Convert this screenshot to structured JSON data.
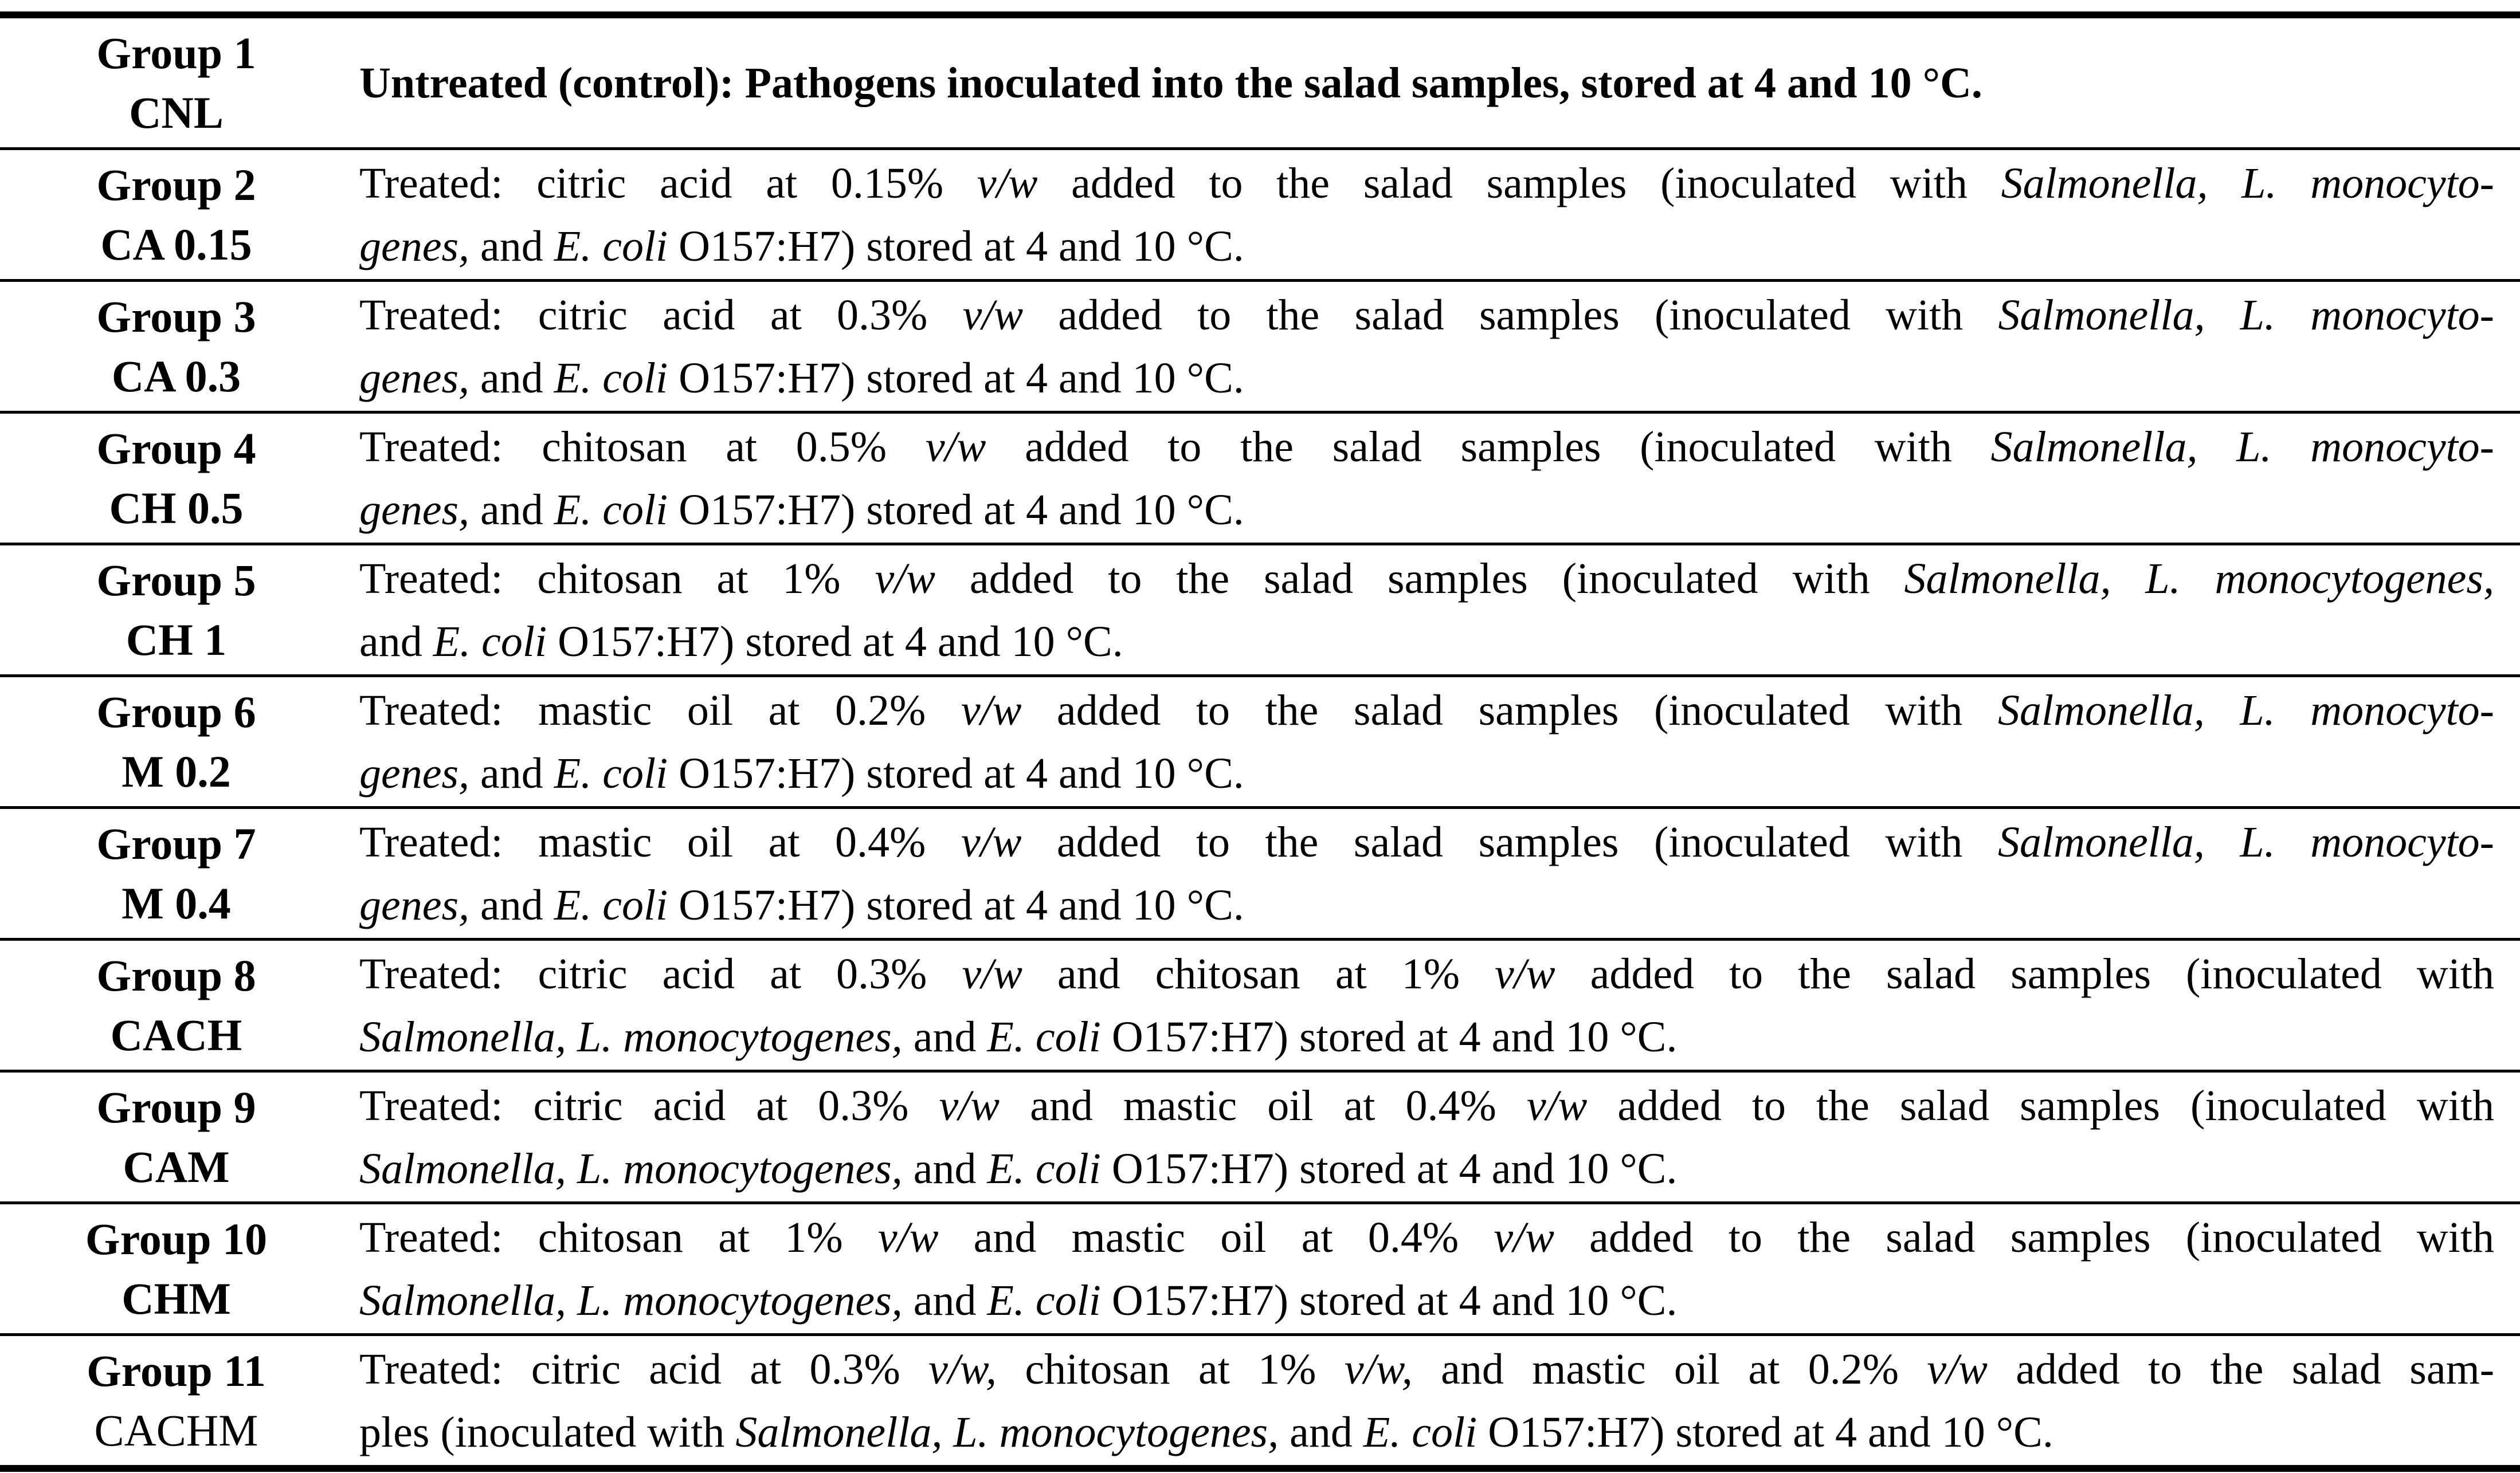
{
  "colors": {
    "text": "#000000",
    "background": "#ffffff",
    "rule": "#000000"
  },
  "table": {
    "rows": [
      {
        "group": "Group 1",
        "code": "CNL",
        "code_bold": true,
        "desc_bold": true,
        "lines": [
          [
            {
              "t": "Untreated (control): Pathogens inoculated into the salad samples, stored at 4 and 10 °C.",
              "i": false
            }
          ]
        ]
      },
      {
        "group": "Group 2",
        "code": "CA 0.15",
        "code_bold": true,
        "desc_bold": false,
        "lines": [
          [
            {
              "t": "Treated: citric acid at 0.15% ",
              "i": false
            },
            {
              "t": "v/w",
              "i": true
            },
            {
              "t": " added to the salad samples (inoculated with ",
              "i": false
            },
            {
              "t": "Salmonella, L. monocyto-",
              "i": true
            }
          ],
          [
            {
              "t": "genes,",
              "i": true
            },
            {
              "t": " and ",
              "i": false
            },
            {
              "t": "E. coli",
              "i": true
            },
            {
              "t": " O157:H7) stored at 4 and 10 °C.",
              "i": false
            }
          ]
        ]
      },
      {
        "group": "Group 3",
        "code": "CA 0.3",
        "code_bold": true,
        "desc_bold": false,
        "lines": [
          [
            {
              "t": "Treated: citric acid at 0.3% ",
              "i": false
            },
            {
              "t": "v/w",
              "i": true
            },
            {
              "t": " added to the salad samples (inoculated with ",
              "i": false
            },
            {
              "t": "Salmonella, L. monocyto-",
              "i": true
            }
          ],
          [
            {
              "t": "genes,",
              "i": true
            },
            {
              "t": " and ",
              "i": false
            },
            {
              "t": "E. coli",
              "i": true
            },
            {
              "t": " O157:H7) stored at 4 and 10 °C.",
              "i": false
            }
          ]
        ]
      },
      {
        "group": "Group 4",
        "code": "CH 0.5",
        "code_bold": true,
        "desc_bold": false,
        "lines": [
          [
            {
              "t": "Treated: chitosan at 0.5% ",
              "i": false
            },
            {
              "t": "v/w",
              "i": true
            },
            {
              "t": " added to the salad samples (inoculated with ",
              "i": false
            },
            {
              "t": "Salmonella, L. monocyto-",
              "i": true
            }
          ],
          [
            {
              "t": "genes,",
              "i": true
            },
            {
              "t": " and ",
              "i": false
            },
            {
              "t": "E. coli",
              "i": true
            },
            {
              "t": " O157:H7) stored at 4 and 10 °C.",
              "i": false
            }
          ]
        ]
      },
      {
        "group": "Group 5",
        "code": "CH 1",
        "code_bold": true,
        "desc_bold": false,
        "lines": [
          [
            {
              "t": "Treated: chitosan at 1% ",
              "i": false
            },
            {
              "t": "v/w",
              "i": true
            },
            {
              "t": " added to the salad samples (inoculated with ",
              "i": false
            },
            {
              "t": "Salmonella, L. monocytogenes,",
              "i": true
            }
          ],
          [
            {
              "t": "and ",
              "i": false
            },
            {
              "t": "E. coli",
              "i": true
            },
            {
              "t": " O157:H7) stored at 4 and 10 °C.",
              "i": false
            }
          ]
        ]
      },
      {
        "group": "Group 6",
        "code": "M 0.2",
        "code_bold": true,
        "desc_bold": false,
        "lines": [
          [
            {
              "t": "Treated: mastic oil at 0.2% ",
              "i": false
            },
            {
              "t": "v/w",
              "i": true
            },
            {
              "t": " added to the salad samples (inoculated with ",
              "i": false
            },
            {
              "t": "Salmonella, L. monocyto-",
              "i": true
            }
          ],
          [
            {
              "t": "genes,",
              "i": true
            },
            {
              "t": " and ",
              "i": false
            },
            {
              "t": "E. coli",
              "i": true
            },
            {
              "t": " O157:H7) stored at 4 and 10 °C.",
              "i": false
            }
          ]
        ]
      },
      {
        "group": "Group 7",
        "code": "M 0.4",
        "code_bold": true,
        "desc_bold": false,
        "lines": [
          [
            {
              "t": "Treated: mastic oil at 0.4% ",
              "i": false
            },
            {
              "t": "v/w",
              "i": true
            },
            {
              "t": " added to the salad samples (inoculated with ",
              "i": false
            },
            {
              "t": "Salmonella, L. monocyto-",
              "i": true
            }
          ],
          [
            {
              "t": "genes,",
              "i": true
            },
            {
              "t": " and ",
              "i": false
            },
            {
              "t": "E. coli",
              "i": true
            },
            {
              "t": " O157:H7) stored at 4 and 10 °C.",
              "i": false
            }
          ]
        ]
      },
      {
        "group": "Group 8",
        "code": "CACH",
        "code_bold": true,
        "desc_bold": false,
        "lines": [
          [
            {
              "t": "Treated: citric acid at 0.3% ",
              "i": false
            },
            {
              "t": "v/w",
              "i": true
            },
            {
              "t": " and chitosan at 1% ",
              "i": false
            },
            {
              "t": "v/w",
              "i": true
            },
            {
              "t": " added to the salad samples (inoculated with",
              "i": false
            }
          ],
          [
            {
              "t": "Salmonella, L. monocytogenes,",
              "i": true
            },
            {
              "t": " and ",
              "i": false
            },
            {
              "t": "E. coli",
              "i": true
            },
            {
              "t": " O157:H7) stored at 4 and 10 °C.",
              "i": false
            }
          ]
        ]
      },
      {
        "group": "Group 9",
        "code": "CAM",
        "code_bold": true,
        "desc_bold": false,
        "lines": [
          [
            {
              "t": "Treated: citric acid at 0.3% ",
              "i": false
            },
            {
              "t": "v/w",
              "i": true
            },
            {
              "t": " and mastic oil at 0.4% ",
              "i": false
            },
            {
              "t": "v/w",
              "i": true
            },
            {
              "t": " added to the salad samples (inoculated with",
              "i": false
            }
          ],
          [
            {
              "t": "Salmonella, L. monocytogenes,",
              "i": true
            },
            {
              "t": " and ",
              "i": false
            },
            {
              "t": "E. coli",
              "i": true
            },
            {
              "t": " O157:H7) stored at 4 and 10 °C.",
              "i": false
            }
          ]
        ]
      },
      {
        "group": "Group 10",
        "code": "CHM",
        "code_bold": true,
        "desc_bold": false,
        "lines": [
          [
            {
              "t": "Treated: chitosan at 1% ",
              "i": false
            },
            {
              "t": "v/w",
              "i": true
            },
            {
              "t": " and mastic oil at 0.4% ",
              "i": false
            },
            {
              "t": "v/w",
              "i": true
            },
            {
              "t": " added to the salad samples (inoculated with",
              "i": false
            }
          ],
          [
            {
              "t": "Salmonella, L. monocytogenes,",
              "i": true
            },
            {
              "t": " and ",
              "i": false
            },
            {
              "t": "E. coli",
              "i": true
            },
            {
              "t": " O157:H7) stored at 4 and 10 °C.",
              "i": false
            }
          ]
        ]
      },
      {
        "group": "Group 11",
        "code": "CACHM",
        "code_bold": false,
        "desc_bold": false,
        "lines": [
          [
            {
              "t": "Treated: citric acid at 0.3% ",
              "i": false
            },
            {
              "t": "v/w,",
              "i": true
            },
            {
              "t": " chitosan at 1% ",
              "i": false
            },
            {
              "t": "v/w,",
              "i": true
            },
            {
              "t": " and mastic oil at 0.2% ",
              "i": false
            },
            {
              "t": "v/w",
              "i": true
            },
            {
              "t": " added to the salad sam-",
              "i": false
            }
          ],
          [
            {
              "t": "ples (inoculated with ",
              "i": false
            },
            {
              "t": "Salmonella, L. monocytogenes,",
              "i": true
            },
            {
              "t": " and ",
              "i": false
            },
            {
              "t": "E. coli",
              "i": true
            },
            {
              "t": " O157:H7) stored at 4 and 10 °C.",
              "i": false
            }
          ]
        ]
      }
    ]
  }
}
